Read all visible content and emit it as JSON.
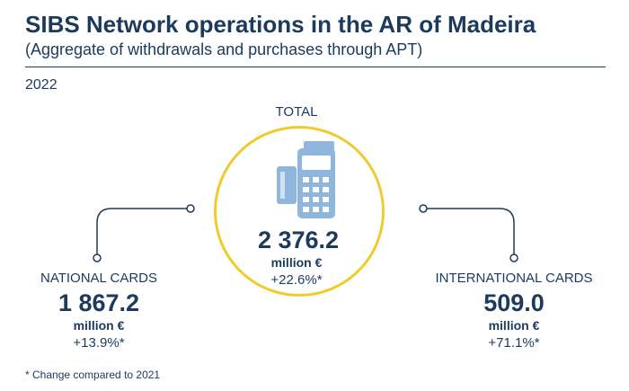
{
  "header": {
    "title": "SIBS Network operations in the AR of Madeira",
    "subtitle": "(Aggregate of withdrawals and purchases through APT)",
    "year": "2022"
  },
  "total": {
    "label": "TOTAL",
    "value": "2 376.2",
    "unit": "million €",
    "change": "+22.6%*",
    "icon": "payment-terminal-icon"
  },
  "national": {
    "label": "NATIONAL CARDS",
    "value": "1 867.2",
    "unit": "million €",
    "change": "+13.9%*"
  },
  "international": {
    "label": "INTERNATIONAL CARDS",
    "value": "509.0",
    "unit": "million €",
    "change": "+71.1%*"
  },
  "footnote": "* Change compared to 2021",
  "colors": {
    "text": "#1b3a5c",
    "circle_border": "#f0cb2f",
    "icon": "#8fb6dd"
  }
}
